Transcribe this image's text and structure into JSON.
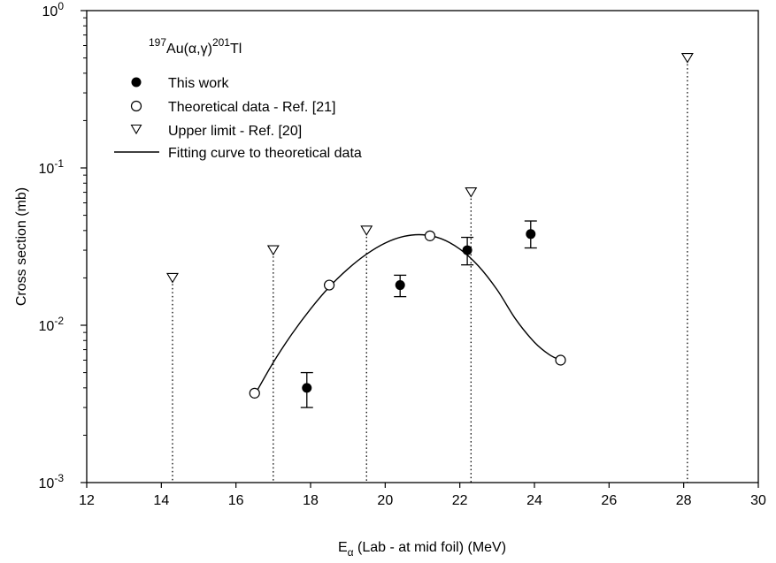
{
  "chart_data": {
    "type": "scatter",
    "yscale": "log",
    "xlim": [
      12,
      30
    ],
    "ylim": [
      0.001,
      1
    ],
    "grid": false,
    "legend_position": "top-left",
    "xlabel": {
      "main": "E",
      "sub": "α",
      "rest": " (Lab - at mid foil) (MeV)"
    },
    "ylabel": "Cross section (mb)",
    "x_ticks": [
      "12",
      "14",
      "16",
      "18",
      "20",
      "22",
      "24",
      "26",
      "28",
      "30"
    ],
    "y_ticks": [
      {
        "base": "10",
        "exp": "0",
        "value": 1
      },
      {
        "base": "10",
        "exp": "-1",
        "value": 0.1
      },
      {
        "base": "10",
        "exp": "-2",
        "value": 0.01
      },
      {
        "base": "10",
        "exp": "-3",
        "value": 0.001
      }
    ],
    "reaction_label": {
      "sup1": "197",
      "mid": "Au(α,γ)",
      "sup2": "201",
      "end": "Tl"
    },
    "series": [
      {
        "name": "This work",
        "marker": "filled-circle",
        "points": [
          {
            "x": 17.9,
            "y": 0.004,
            "err_low": 0.003,
            "err_high": 0.005
          },
          {
            "x": 20.4,
            "y": 0.018,
            "err_low": 0.0152,
            "err_high": 0.0208
          },
          {
            "x": 22.2,
            "y": 0.03,
            "err_low": 0.0242,
            "err_high": 0.0362
          },
          {
            "x": 23.9,
            "y": 0.038,
            "err_low": 0.031,
            "err_high": 0.046
          }
        ]
      },
      {
        "name": "Theoretical data - Ref. [21]",
        "marker": "open-circle",
        "points": [
          {
            "x": 16.5,
            "y": 0.0037
          },
          {
            "x": 18.5,
            "y": 0.018
          },
          {
            "x": 21.2,
            "y": 0.037
          },
          {
            "x": 24.7,
            "y": 0.006
          }
        ]
      },
      {
        "name": "Upper limit - Ref. [20]",
        "marker": "open-triangle-down",
        "points": [
          {
            "x": 14.3,
            "y": 0.02
          },
          {
            "x": 17.0,
            "y": 0.03
          },
          {
            "x": 19.5,
            "y": 0.04
          },
          {
            "x": 22.3,
            "y": 0.07
          },
          {
            "x": 28.1,
            "y": 0.5
          }
        ]
      },
      {
        "name": "Fitting curve to theoretical data",
        "marker": "line",
        "points": [
          {
            "x": 16.5,
            "y": 0.0036
          },
          {
            "x": 17.0,
            "y": 0.0058
          },
          {
            "x": 17.5,
            "y": 0.0088
          },
          {
            "x": 18.0,
            "y": 0.0127
          },
          {
            "x": 18.5,
            "y": 0.0175
          },
          {
            "x": 19.0,
            "y": 0.0228
          },
          {
            "x": 19.5,
            "y": 0.0283
          },
          {
            "x": 20.0,
            "y": 0.0333
          },
          {
            "x": 20.5,
            "y": 0.0367
          },
          {
            "x": 21.0,
            "y": 0.0376
          },
          {
            "x": 21.5,
            "y": 0.0355
          },
          {
            "x": 22.0,
            "y": 0.0305
          },
          {
            "x": 22.5,
            "y": 0.0238
          },
          {
            "x": 23.0,
            "y": 0.0168
          },
          {
            "x": 23.5,
            "y": 0.0109
          },
          {
            "x": 24.0,
            "y": 0.0078
          },
          {
            "x": 24.4,
            "y": 0.0065
          },
          {
            "x": 24.7,
            "y": 0.006
          }
        ]
      }
    ]
  }
}
